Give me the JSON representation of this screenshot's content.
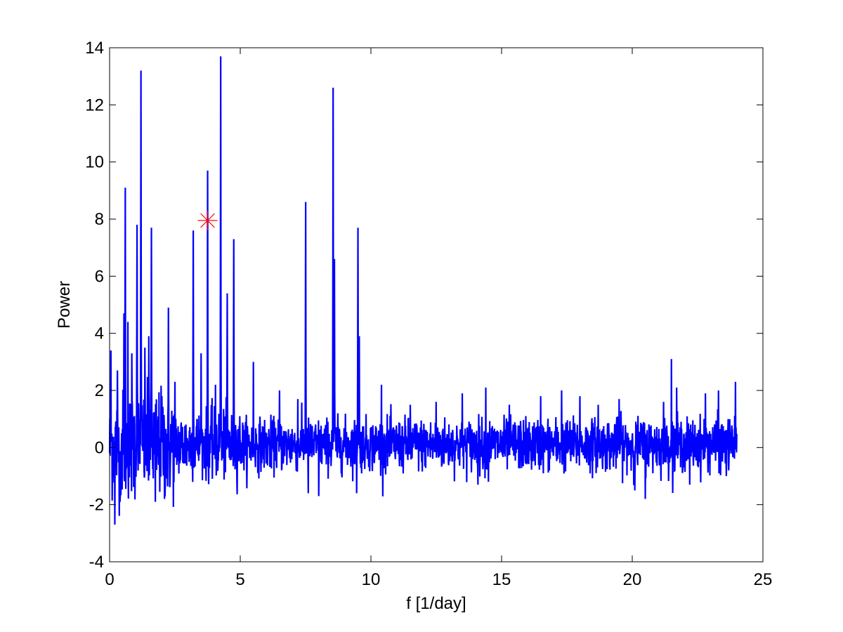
{
  "chart_data": {
    "type": "line",
    "xlabel": "f [1/day]",
    "ylabel": "Power",
    "xlim": [
      0,
      25
    ],
    "ylim": [
      -4,
      14
    ],
    "xticks": [
      0,
      5,
      10,
      15,
      20,
      25
    ],
    "yticks": [
      -4,
      -2,
      0,
      2,
      4,
      6,
      8,
      10,
      12,
      14
    ],
    "grid": false,
    "series": [
      {
        "color": "#0000ff",
        "x_range": [
          0,
          24
        ],
        "peaks": [
          {
            "x": 0.05,
            "y": 3.4
          },
          {
            "x": 0.2,
            "y": -2.7
          },
          {
            "x": 0.3,
            "y": 2.7
          },
          {
            "x": 0.4,
            "y": -1.9
          },
          {
            "x": 0.55,
            "y": 4.7
          },
          {
            "x": 0.6,
            "y": 9.1
          },
          {
            "x": 0.7,
            "y": 4.4
          },
          {
            "x": 0.85,
            "y": 3.3
          },
          {
            "x": 1.05,
            "y": 7.8
          },
          {
            "x": 1.2,
            "y": 13.2
          },
          {
            "x": 1.35,
            "y": 3.5
          },
          {
            "x": 1.5,
            "y": 3.9
          },
          {
            "x": 1.6,
            "y": 7.7
          },
          {
            "x": 1.75,
            "y": -1.9
          },
          {
            "x": 2.0,
            "y": 1.8
          },
          {
            "x": 2.1,
            "y": -1.8
          },
          {
            "x": 2.25,
            "y": 4.9
          },
          {
            "x": 2.5,
            "y": 2.3
          },
          {
            "x": 3.2,
            "y": 7.6
          },
          {
            "x": 3.5,
            "y": 3.3
          },
          {
            "x": 3.75,
            "y": 9.7
          },
          {
            "x": 4.05,
            "y": 2.2
          },
          {
            "x": 4.25,
            "y": 13.7
          },
          {
            "x": 4.5,
            "y": 5.4
          },
          {
            "x": 4.75,
            "y": 7.3
          },
          {
            "x": 5.5,
            "y": 3.0
          },
          {
            "x": 6.5,
            "y": 2.0
          },
          {
            "x": 7.2,
            "y": 1.7
          },
          {
            "x": 7.5,
            "y": 8.6
          },
          {
            "x": 7.6,
            "y": -1.6
          },
          {
            "x": 8.0,
            "y": -1.7
          },
          {
            "x": 8.55,
            "y": 12.6
          },
          {
            "x": 8.6,
            "y": 6.6
          },
          {
            "x": 9.5,
            "y": 7.7
          },
          {
            "x": 9.55,
            "y": 3.9
          },
          {
            "x": 9.45,
            "y": -1.6
          },
          {
            "x": 10.4,
            "y": 2.2
          },
          {
            "x": 11.5,
            "y": 1.5
          },
          {
            "x": 12.5,
            "y": 1.6
          },
          {
            "x": 13.5,
            "y": 1.9
          },
          {
            "x": 14.1,
            "y": -1.3
          },
          {
            "x": 14.4,
            "y": 2.1
          },
          {
            "x": 14.5,
            "y": -1.2
          },
          {
            "x": 15.3,
            "y": 1.5
          },
          {
            "x": 16.5,
            "y": 1.8
          },
          {
            "x": 17.3,
            "y": 2.0
          },
          {
            "x": 18.0,
            "y": 1.8
          },
          {
            "x": 18.7,
            "y": 1.5
          },
          {
            "x": 19.5,
            "y": 1.7
          },
          {
            "x": 20.1,
            "y": -1.5
          },
          {
            "x": 20.5,
            "y": -1.8
          },
          {
            "x": 21.2,
            "y": 1.6
          },
          {
            "x": 21.5,
            "y": 3.1
          },
          {
            "x": 21.7,
            "y": 2.1
          },
          {
            "x": 22.2,
            "y": -1.3
          },
          {
            "x": 22.8,
            "y": 1.9
          },
          {
            "x": 23.3,
            "y": 2.0
          },
          {
            "x": 23.6,
            "y": -1.0
          },
          {
            "x": 23.95,
            "y": 2.3
          }
        ]
      }
    ],
    "marker": {
      "x": 3.75,
      "y": 7.95,
      "symbol": "asterisk",
      "color": "#ff0000"
    }
  }
}
